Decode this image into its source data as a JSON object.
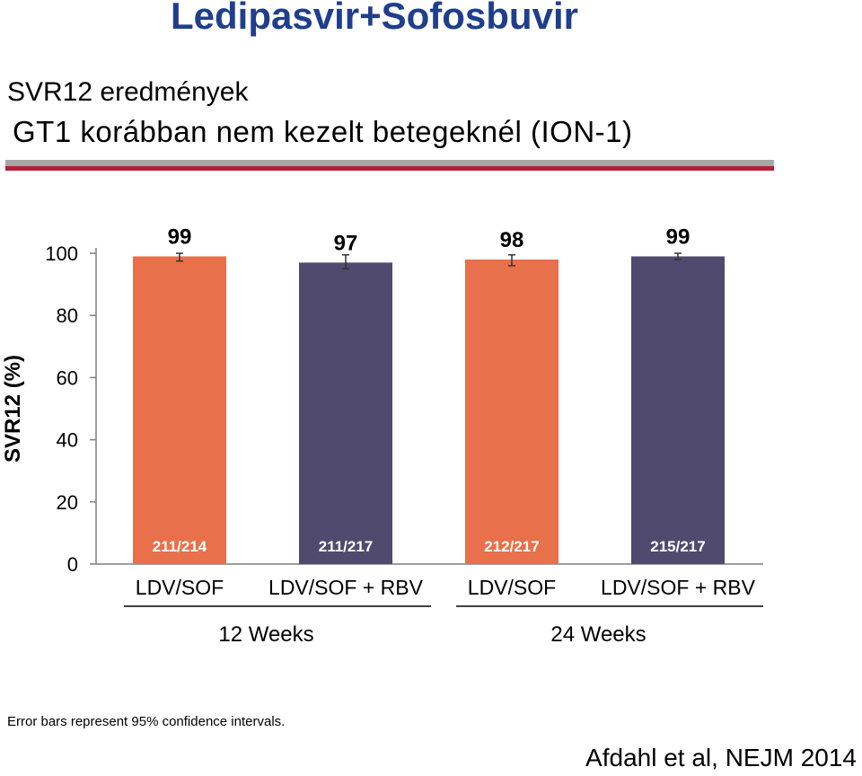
{
  "header": {
    "title": "Ledipasvir+Sofosbuvir",
    "subtitle_line1": "SVR12 eredmények",
    "subtitle_line2": "GT1 korábban nem kezelt betegeknél (ION-1)"
  },
  "chart_data": {
    "type": "bar",
    "ylabel": "SVR12 (%)",
    "ylim": [
      0,
      100
    ],
    "yticks": [
      0,
      20,
      40,
      60,
      80,
      100
    ],
    "categories": [
      "LDV/SOF",
      "LDV/SOF + RBV",
      "LDV/SOF",
      "LDV/SOF + RBV"
    ],
    "groups": [
      {
        "label": "12 Weeks",
        "members": [
          0,
          1
        ]
      },
      {
        "label": "24 Weeks",
        "members": [
          2,
          3
        ]
      }
    ],
    "values": [
      99,
      97,
      98,
      99
    ],
    "value_labels": [
      "99",
      "97",
      "98",
      "99"
    ],
    "counts": [
      "211/214",
      "211/217",
      "212/217",
      "215/217"
    ],
    "error_bars": [
      [
        97.5,
        100
      ],
      [
        95,
        99.5
      ],
      [
        96,
        99.5
      ],
      [
        98,
        100
      ]
    ],
    "bar_colors": [
      "#e8704a",
      "#4f4a6e",
      "#e8704a",
      "#4f4a6e"
    ],
    "grid": false,
    "legend": "none"
  },
  "footnote": "Error bars represent 95% confidence intervals.",
  "citation": "Afdahl et al, NEJM 2014"
}
